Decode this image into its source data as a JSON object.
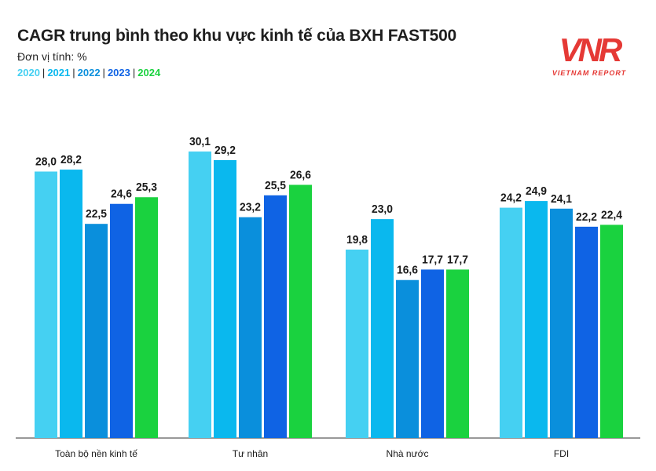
{
  "title": "CAGR trung bình theo khu vực kinh tế của BXH FAST500",
  "unit_label": "Đơn vị tính: %",
  "logo": {
    "mark": "VNR",
    "subtitle": "VIETNAM REPORT",
    "color": "#e53935"
  },
  "legend": [
    {
      "label": "2020",
      "color": "#45d0f2"
    },
    {
      "label": "2021",
      "color": "#0ab8ee"
    },
    {
      "label": "2022",
      "color": "#0a8fdc"
    },
    {
      "label": "2023",
      "color": "#0f63e4"
    },
    {
      "label": "2024",
      "color": "#1ad23f"
    }
  ],
  "chart_data": {
    "type": "bar",
    "title": "CAGR trung bình theo khu vực kinh tế của BXH FAST500",
    "ylabel": "Đơn vị tính: %",
    "xlabel": "",
    "ylim": [
      0,
      32
    ],
    "categories": [
      "Toàn bộ nền kinh tế",
      "Tư nhân",
      "Nhà nước",
      "FDI"
    ],
    "series": [
      {
        "name": "2020",
        "values": [
          28.0,
          30.1,
          19.8,
          24.2
        ],
        "labels": [
          "28,0",
          "30,1",
          "19,8",
          "24,2"
        ]
      },
      {
        "name": "2021",
        "values": [
          28.2,
          29.2,
          23.0,
          24.9
        ],
        "labels": [
          "28,2",
          "29,2",
          "23,0",
          "24,9"
        ]
      },
      {
        "name": "2022",
        "values": [
          22.5,
          23.2,
          16.6,
          24.1
        ],
        "labels": [
          "22,5",
          "23,2",
          "16,6",
          "24,1"
        ]
      },
      {
        "name": "2023",
        "values": [
          24.6,
          25.5,
          17.7,
          22.2
        ],
        "labels": [
          "24,6",
          "25,5",
          "17,7",
          "22,2"
        ]
      },
      {
        "name": "2024",
        "values": [
          25.3,
          26.6,
          17.7,
          22.4
        ],
        "labels": [
          "25,3",
          "26,6",
          "17,7",
          "22,4"
        ]
      }
    ]
  }
}
